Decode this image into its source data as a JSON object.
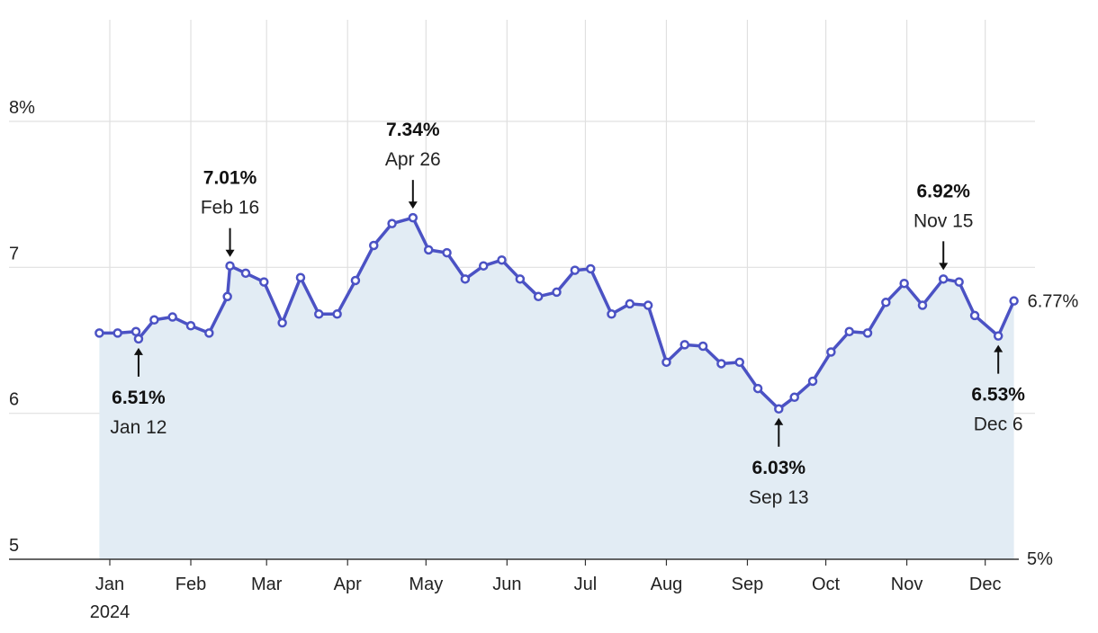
{
  "chart_data": {
    "type": "area",
    "title": "",
    "xlabel": "",
    "ylabel": "",
    "year_label": "2024",
    "ylim": [
      5,
      8
    ],
    "y_ticks": [
      {
        "value": 8,
        "label": "8%"
      },
      {
        "value": 7,
        "label": "7"
      },
      {
        "value": 6,
        "label": "6"
      },
      {
        "value": 5,
        "label": "5"
      }
    ],
    "right_axis_label": "5%",
    "months": [
      {
        "label": "Jan",
        "date": "2024-01-01"
      },
      {
        "label": "Feb",
        "date": "2024-02-01"
      },
      {
        "label": "Mar",
        "date": "2024-03-01"
      },
      {
        "label": "Apr",
        "date": "2024-04-01"
      },
      {
        "label": "May",
        "date": "2024-05-01"
      },
      {
        "label": "Jun",
        "date": "2024-06-01"
      },
      {
        "label": "Jul",
        "date": "2024-07-01"
      },
      {
        "label": "Aug",
        "date": "2024-08-01"
      },
      {
        "label": "Sep",
        "date": "2024-09-01"
      },
      {
        "label": "Oct",
        "date": "2024-10-01"
      },
      {
        "label": "Nov",
        "date": "2024-11-01"
      },
      {
        "label": "Dec",
        "date": "2024-12-01"
      }
    ],
    "grid": true,
    "colors": {
      "line": "#4b52c4",
      "fill": "#e2ecf4",
      "grid": "#e0e0e0",
      "axis": "#333333"
    },
    "series": [
      {
        "points": [
          [
            "2023-12-28",
            6.55
          ],
          [
            "2024-01-04",
            6.55
          ],
          [
            "2024-01-11",
            6.56
          ],
          [
            "2024-01-18",
            6.64
          ],
          [
            "2024-01-12",
            6.51
          ],
          [
            "2024-01-25",
            6.66
          ],
          [
            "2024-02-01",
            6.6
          ],
          [
            "2024-02-08",
            6.55
          ],
          [
            "2024-02-15",
            6.8
          ],
          [
            "2024-02-16",
            7.01
          ],
          [
            "2024-02-22",
            6.96
          ],
          [
            "2024-02-29",
            6.9
          ],
          [
            "2024-03-07",
            6.62
          ],
          [
            "2024-03-14",
            6.93
          ],
          [
            "2024-03-21",
            6.68
          ],
          [
            "2024-03-28",
            6.68
          ],
          [
            "2024-04-04",
            6.91
          ],
          [
            "2024-04-11",
            7.15
          ],
          [
            "2024-04-18",
            7.3
          ],
          [
            "2024-04-26",
            7.34
          ],
          [
            "2024-05-02",
            7.12
          ],
          [
            "2024-05-09",
            7.1
          ],
          [
            "2024-05-16",
            6.92
          ],
          [
            "2024-05-23",
            7.01
          ],
          [
            "2024-05-30",
            7.05
          ],
          [
            "2024-06-06",
            6.92
          ],
          [
            "2024-06-13",
            6.8
          ],
          [
            "2024-06-20",
            6.83
          ],
          [
            "2024-06-27",
            6.98
          ],
          [
            "2024-07-03",
            6.99
          ],
          [
            "2024-07-11",
            6.68
          ],
          [
            "2024-07-18",
            6.75
          ],
          [
            "2024-07-25",
            6.74
          ],
          [
            "2024-08-01",
            6.35
          ],
          [
            "2024-08-08",
            6.47
          ],
          [
            "2024-08-15",
            6.46
          ],
          [
            "2024-08-22",
            6.34
          ],
          [
            "2024-08-29",
            6.35
          ],
          [
            "2024-09-05",
            6.17
          ],
          [
            "2024-09-13",
            6.03
          ],
          [
            "2024-09-19",
            6.11
          ],
          [
            "2024-09-26",
            6.22
          ],
          [
            "2024-10-03",
            6.42
          ],
          [
            "2024-10-10",
            6.56
          ],
          [
            "2024-10-17",
            6.55
          ],
          [
            "2024-10-24",
            6.76
          ],
          [
            "2024-10-31",
            6.89
          ],
          [
            "2024-11-07",
            6.74
          ],
          [
            "2024-11-15",
            6.92
          ],
          [
            "2024-11-21",
            6.9
          ],
          [
            "2024-11-27",
            6.67
          ],
          [
            "2024-12-06",
            6.53
          ],
          [
            "2024-12-12",
            6.77
          ]
        ]
      }
    ],
    "last_value_label": "6.77%",
    "annotations": [
      {
        "date": "2024-01-12",
        "value": 6.51,
        "value_label": "6.51%",
        "date_label": "Jan 12",
        "position": "below"
      },
      {
        "date": "2024-02-16",
        "value": 7.01,
        "value_label": "7.01%",
        "date_label": "Feb 16",
        "position": "above"
      },
      {
        "date": "2024-04-26",
        "value": 7.34,
        "value_label": "7.34%",
        "date_label": "Apr 26",
        "position": "above"
      },
      {
        "date": "2024-09-13",
        "value": 6.03,
        "value_label": "6.03%",
        "date_label": "Sep 13",
        "position": "below"
      },
      {
        "date": "2024-11-15",
        "value": 6.92,
        "value_label": "6.92%",
        "date_label": "Nov 15",
        "position": "above"
      },
      {
        "date": "2024-12-06",
        "value": 6.53,
        "value_label": "6.53%",
        "date_label": "Dec 6",
        "position": "below"
      }
    ]
  }
}
